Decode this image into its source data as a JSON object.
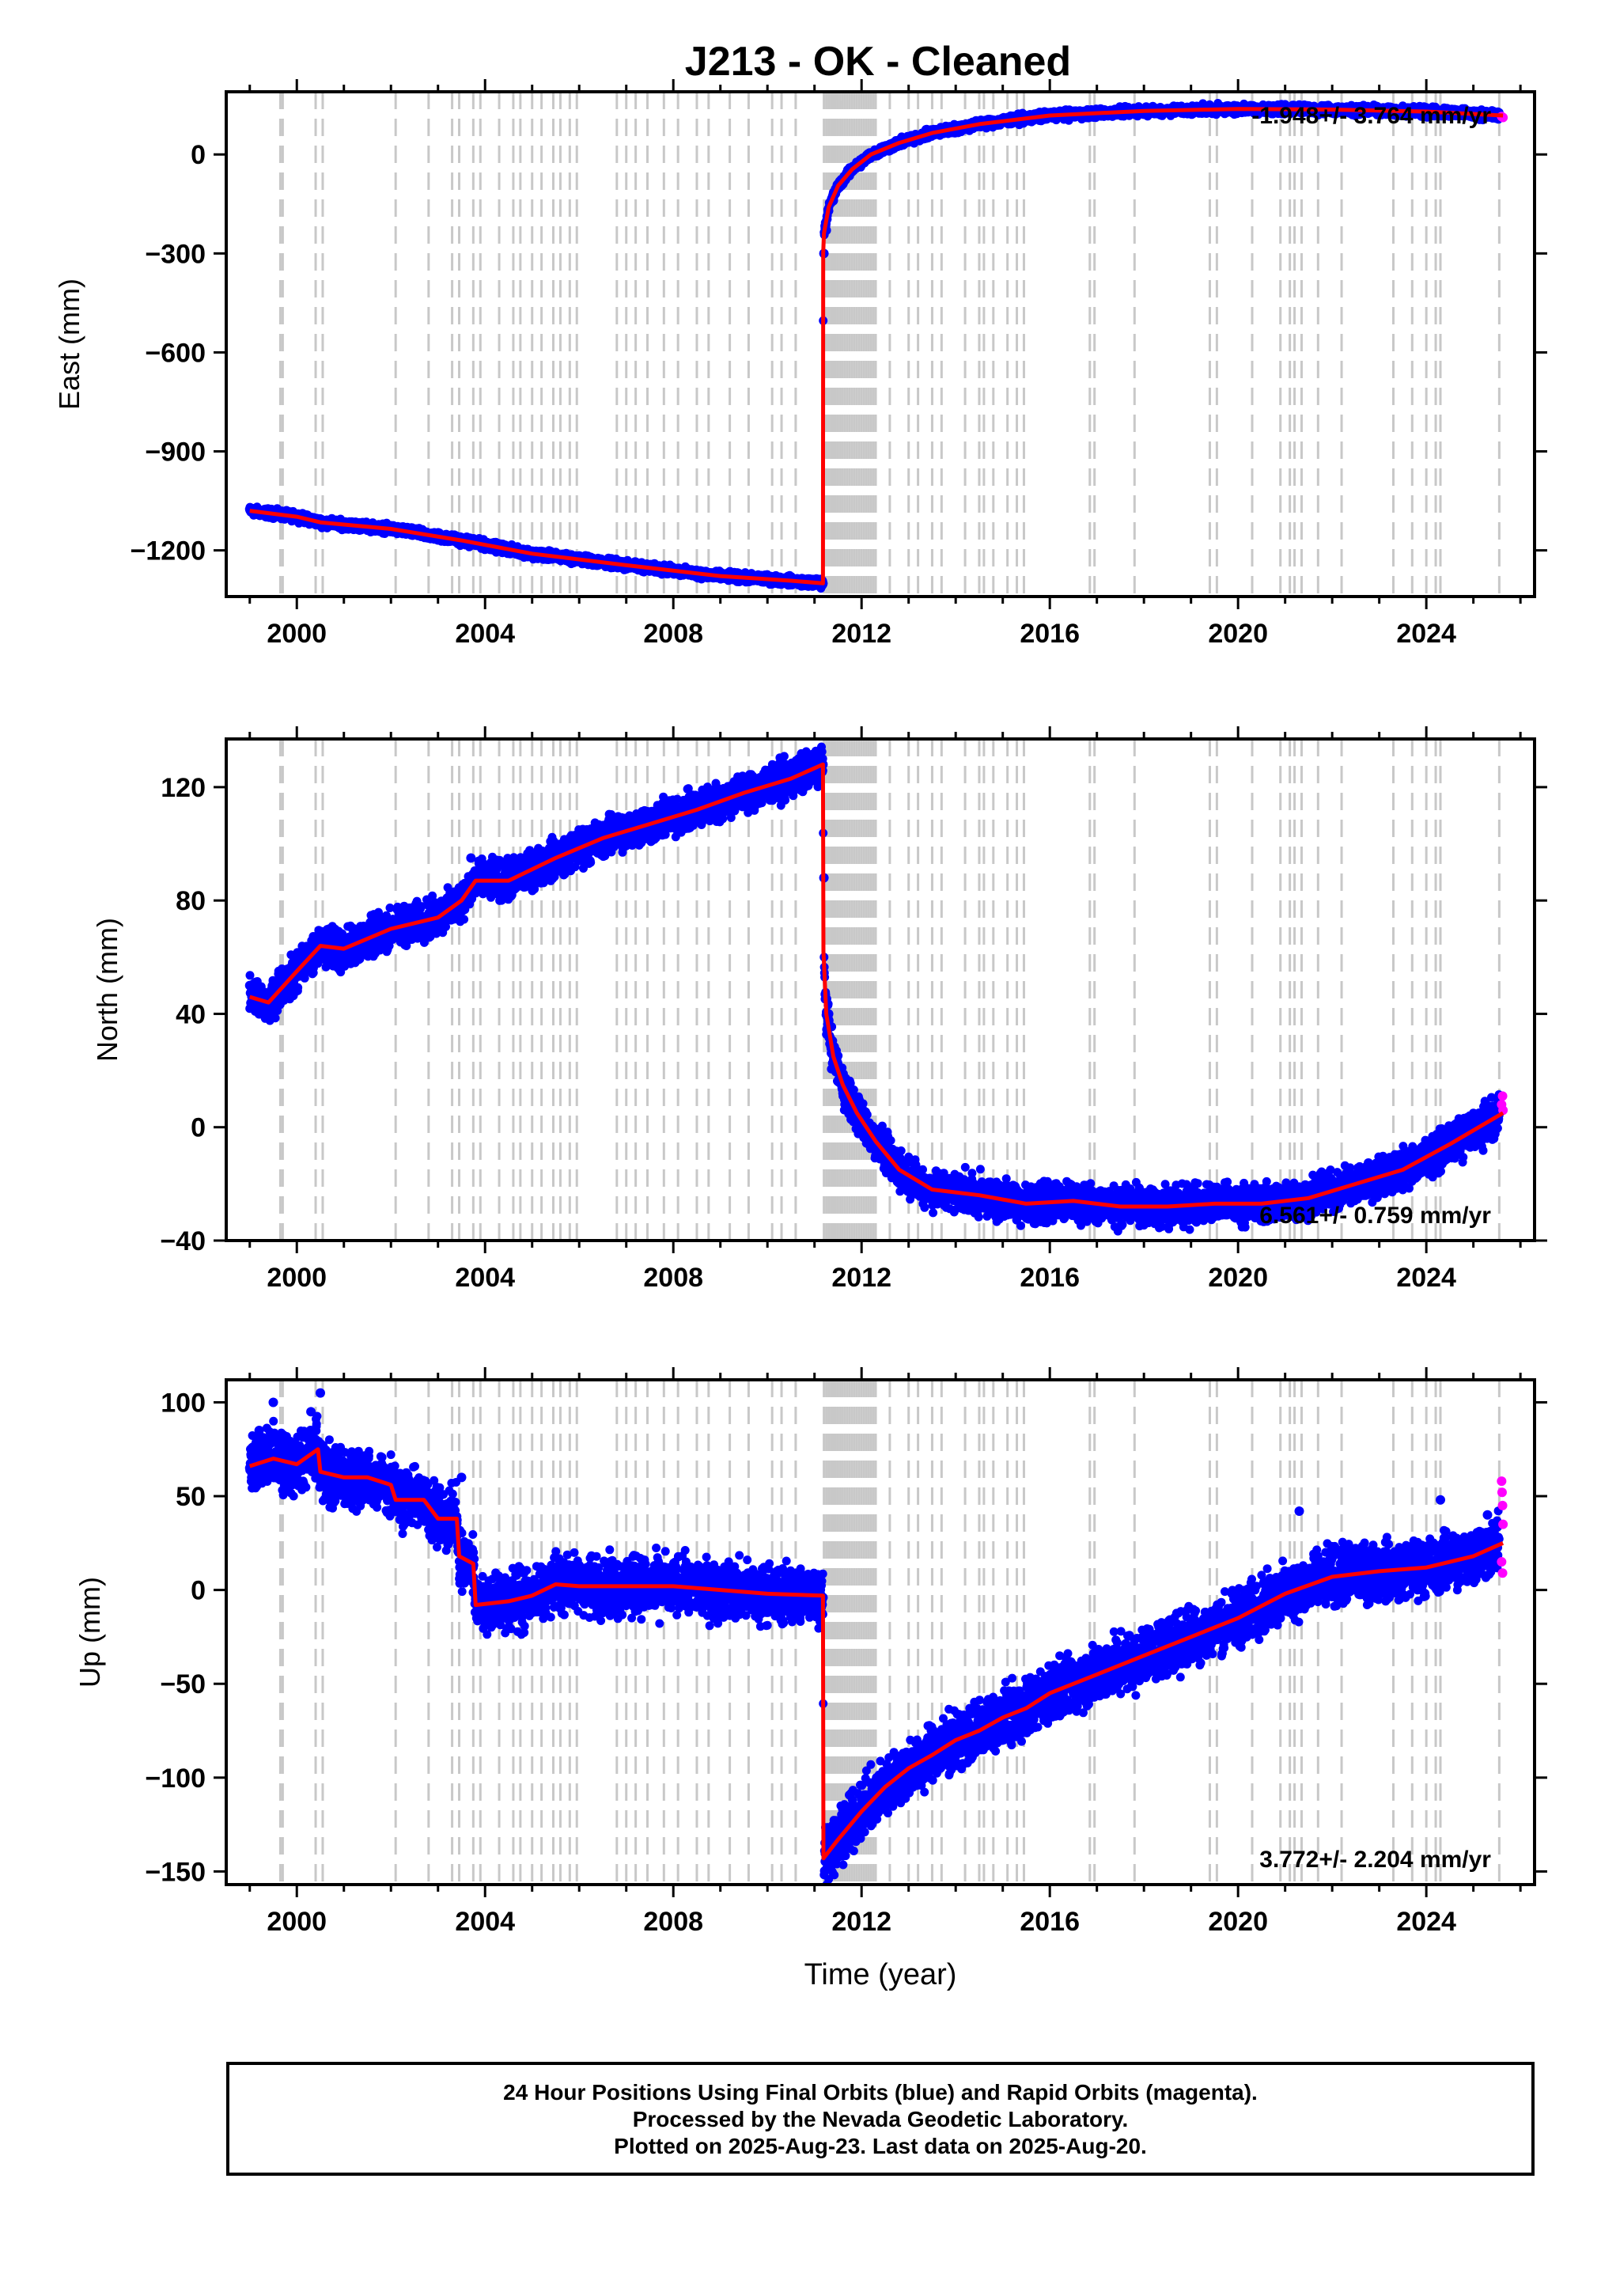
{
  "title": "J213  - OK - Cleaned",
  "colors": {
    "final_points": "#0000ff",
    "rapid_points": "#ff00ff",
    "model_line": "#ff0000",
    "event_lines": "#c8c8c8",
    "frame": "#000000"
  },
  "footer": {
    "line1": "24 Hour Positions Using Final Orbits (blue) and Rapid Orbits (magenta).",
    "line2": "Processed by the Nevada Geodetic Laboratory.",
    "line3": "Plotted on 2025-Aug-23. Last data on 2025-Aug-20."
  },
  "chart_data": [
    {
      "type": "scatter",
      "component": "east",
      "ylabel": "East (mm)",
      "xlabel": "",
      "rate_label": "-1.948+/- 3.764 mm/yr",
      "xlim": [
        1998.5,
        2026.3
      ],
      "ylim": [
        -1340,
        190
      ],
      "xticks": [
        2000,
        2004,
        2008,
        2012,
        2016,
        2020,
        2024
      ],
      "yticks": [
        -1200,
        -900,
        -600,
        -300,
        0
      ],
      "ytick_labels": [
        "−1200",
        "−900",
        "−600",
        "−300",
        "0"
      ],
      "model_x": [
        1999.0,
        2000.0,
        2000.5,
        2002.0,
        2003.5,
        2005.0,
        2007.0,
        2009.0,
        2010.5,
        2011.18,
        2011.185,
        2011.2,
        2011.3,
        2011.5,
        2011.8,
        2012.2,
        2012.8,
        2013.5,
        2014.5,
        2016.0,
        2018.0,
        2020.0,
        2022.0,
        2024.0,
        2025.63
      ],
      "model_y": [
        -1080,
        -1098,
        -1115,
        -1135,
        -1170,
        -1210,
        -1245,
        -1278,
        -1292,
        -1300,
        -300,
        -240,
        -160,
        -95,
        -45,
        0,
        35,
        65,
        92,
        118,
        132,
        138,
        136,
        130,
        118
      ],
      "final_points": [
        [
          1999.0,
          -1075
        ],
        [
          1999.5,
          -1082
        ],
        [
          2000.0,
          -1095
        ],
        [
          2000.5,
          -1105
        ],
        [
          2001.0,
          -1115
        ],
        [
          2001.5,
          -1125
        ],
        [
          2002.0,
          -1138
        ],
        [
          2002.5,
          -1145
        ],
        [
          2003.0,
          -1158
        ],
        [
          2003.5,
          -1170
        ],
        [
          2004.0,
          -1182
        ],
        [
          2004.5,
          -1195
        ],
        [
          2005.0,
          -1208
        ],
        [
          2005.5,
          -1220
        ],
        [
          2006.0,
          -1230
        ],
        [
          2006.5,
          -1240
        ],
        [
          2007.0,
          -1248
        ],
        [
          2007.5,
          -1258
        ],
        [
          2008.0,
          -1266
        ],
        [
          2008.5,
          -1272
        ],
        [
          2009.0,
          -1278
        ],
        [
          2009.5,
          -1284
        ],
        [
          2010.0,
          -1288
        ],
        [
          2010.5,
          -1293
        ],
        [
          2011.0,
          -1298
        ],
        [
          2011.18,
          -1300
        ],
        [
          2011.2,
          -300
        ],
        [
          2011.25,
          -230
        ],
        [
          2011.4,
          -140
        ],
        [
          2011.6,
          -90
        ],
        [
          2011.9,
          -40
        ],
        [
          2012.3,
          5
        ],
        [
          2012.8,
          35
        ],
        [
          2013.3,
          58
        ],
        [
          2014.0,
          80
        ],
        [
          2014.8,
          98
        ],
        [
          2015.5,
          110
        ],
        [
          2016.5,
          122
        ],
        [
          2017.5,
          130
        ],
        [
          2018.5,
          134
        ],
        [
          2019.5,
          137
        ],
        [
          2020.5,
          138
        ],
        [
          2021.3,
          150
        ],
        [
          2022.0,
          137
        ],
        [
          2023.0,
          134
        ],
        [
          2024.0,
          130
        ],
        [
          2025.0,
          124
        ],
        [
          2025.55,
          118
        ]
      ],
      "rapid_points": [
        [
          2025.6,
          115
        ],
        [
          2025.63,
          112
        ]
      ]
    },
    {
      "type": "scatter",
      "component": "north",
      "ylabel": "North (mm)",
      "xlabel": "",
      "rate_label": "6.561+/- 0.759 mm/yr",
      "xlim": [
        1998.5,
        2026.3
      ],
      "ylim": [
        -40,
        137
      ],
      "xticks": [
        2000,
        2004,
        2008,
        2012,
        2016,
        2020,
        2024
      ],
      "yticks": [
        -40,
        0,
        40,
        80,
        120
      ],
      "ytick_labels": [
        "−40",
        "0",
        "40",
        "80",
        "120"
      ],
      "model_x": [
        1999.0,
        1999.4,
        2000.0,
        2000.5,
        2001.0,
        2002.0,
        2003.0,
        2003.5,
        2003.8,
        2004.5,
        2005.5,
        2006.5,
        2007.5,
        2008.5,
        2009.5,
        2010.5,
        2011.18,
        2011.19,
        2011.25,
        2011.4,
        2011.6,
        2011.9,
        2012.3,
        2012.8,
        2013.5,
        2014.5,
        2015.5,
        2016.5,
        2017.5,
        2018.5,
        2019.5,
        2020.5,
        2021.5,
        2022.5,
        2023.5,
        2024.5,
        2025.63
      ],
      "model_y": [
        46,
        44,
        55,
        64,
        63,
        70,
        74,
        80,
        87,
        87,
        95,
        102,
        107,
        112,
        118,
        123,
        128,
        62,
        40,
        25,
        15,
        5,
        -5,
        -15,
        -22,
        -24,
        -27,
        -26,
        -28,
        -28,
        -27,
        -27,
        -25,
        -20,
        -15,
        -6,
        5
      ],
      "final_points": [
        [
          1999.0,
          50
        ],
        [
          1999.2,
          40
        ],
        [
          1999.5,
          47
        ],
        [
          2000.0,
          55
        ],
        [
          2000.5,
          63
        ],
        [
          2001.0,
          65
        ],
        [
          2001.5,
          66
        ],
        [
          2002.0,
          70
        ],
        [
          2002.5,
          71
        ],
        [
          2003.0,
          75
        ],
        [
          2003.5,
          82
        ],
        [
          2003.7,
          95
        ],
        [
          2004.0,
          88
        ],
        [
          2004.5,
          88
        ],
        [
          2005.0,
          93
        ],
        [
          2005.5,
          96
        ],
        [
          2006.0,
          100
        ],
        [
          2006.5,
          103
        ],
        [
          2007.0,
          106
        ],
        [
          2007.5,
          108
        ],
        [
          2008.0,
          110
        ],
        [
          2008.5,
          113
        ],
        [
          2009.0,
          116
        ],
        [
          2009.5,
          119
        ],
        [
          2010.0,
          122
        ],
        [
          2010.5,
          127
        ],
        [
          2011.0,
          131
        ],
        [
          2011.18,
          128
        ],
        [
          2011.2,
          88
        ],
        [
          2011.3,
          40
        ],
        [
          2011.5,
          22
        ],
        [
          2011.8,
          10
        ],
        [
          2012.2,
          -2
        ],
        [
          2012.8,
          -12
        ],
        [
          2013.5,
          -20
        ],
        [
          2014.3,
          -25
        ],
        [
          2015.0,
          -28
        ],
        [
          2015.5,
          -26
        ],
        [
          2016.0,
          -25
        ],
        [
          2016.7,
          -26
        ],
        [
          2017.3,
          -27
        ],
        [
          2018.0,
          -28
        ],
        [
          2018.7,
          -27
        ],
        [
          2019.3,
          -27
        ],
        [
          2019.9,
          -26
        ],
        [
          2020.5,
          -28
        ],
        [
          2021.0,
          -26
        ],
        [
          2021.5,
          -24
        ],
        [
          2022.2,
          -18
        ],
        [
          2022.8,
          -16
        ],
        [
          2023.4,
          -14
        ],
        [
          2024.0,
          -12
        ],
        [
          2024.6,
          -4
        ],
        [
          2025.1,
          -1
        ],
        [
          2025.5,
          3
        ]
      ],
      "rapid_points": [
        [
          2025.6,
          8
        ],
        [
          2025.62,
          11
        ],
        [
          2025.63,
          6
        ]
      ]
    },
    {
      "type": "scatter",
      "component": "up",
      "ylabel": "Up (mm)",
      "xlabel": "Time (year)",
      "rate_label": "3.772+/- 2.204 mm/yr",
      "xlim": [
        1998.5,
        2026.3
      ],
      "ylim": [
        -157,
        112
      ],
      "xticks": [
        2000,
        2004,
        2008,
        2012,
        2016,
        2020,
        2024
      ],
      "yticks": [
        -150,
        -100,
        -50,
        0,
        50,
        100
      ],
      "ytick_labels": [
        "−150",
        "−100",
        "−50",
        "0",
        "50",
        "100"
      ],
      "model_x": [
        1999.0,
        1999.5,
        2000.0,
        2000.45,
        2000.5,
        2001.0,
        2001.5,
        2002.0,
        2002.1,
        2002.7,
        2003.0,
        2003.4,
        2003.45,
        2003.75,
        2003.8,
        2004.5,
        2005.0,
        2005.5,
        2006.0,
        2007.0,
        2008.0,
        2009.0,
        2010.0,
        2011.18,
        2011.19,
        2011.5,
        2012.0,
        2012.5,
        2013.0,
        2013.5,
        2014.0,
        2014.5,
        2015.0,
        2015.5,
        2016.0,
        2017.0,
        2018.0,
        2019.0,
        2020.0,
        2021.0,
        2022.0,
        2023.0,
        2024.0,
        2025.0,
        2025.63
      ],
      "model_y": [
        66,
        70,
        67,
        75,
        63,
        60,
        60,
        56,
        48,
        48,
        38,
        38,
        18,
        14,
        -8,
        -6,
        -3,
        3,
        2,
        2,
        2,
        0,
        -2,
        -3,
        -143,
        -133,
        -118,
        -105,
        -95,
        -88,
        -80,
        -75,
        -68,
        -63,
        -55,
        -45,
        -35,
        -25,
        -15,
        -2,
        7,
        10,
        12,
        18,
        25
      ],
      "final_points": [
        [
          1999.0,
          65
        ],
        [
          1999.2,
          85
        ],
        [
          1999.5,
          100
        ],
        [
          1999.8,
          70
        ],
        [
          2000.0,
          75
        ],
        [
          2000.3,
          95
        ],
        [
          2000.5,
          105
        ],
        [
          2000.8,
          60
        ],
        [
          2001.2,
          62
        ],
        [
          2001.6,
          58
        ],
        [
          2002.0,
          55
        ],
        [
          2002.4,
          48
        ],
        [
          2002.8,
          45
        ],
        [
          2003.2,
          40
        ],
        [
          2003.5,
          60
        ],
        [
          2003.8,
          -5
        ],
        [
          2004.0,
          -12
        ],
        [
          2004.5,
          -3
        ],
        [
          2005.0,
          0
        ],
        [
          2005.5,
          10
        ],
        [
          2006.0,
          5
        ],
        [
          2006.5,
          3
        ],
        [
          2007.0,
          0
        ],
        [
          2007.5,
          4
        ],
        [
          2008.0,
          2
        ],
        [
          2008.5,
          0
        ],
        [
          2009.0,
          1
        ],
        [
          2009.5,
          -2
        ],
        [
          2010.0,
          0
        ],
        [
          2010.5,
          -3
        ],
        [
          2011.0,
          -5
        ],
        [
          2011.18,
          -4
        ],
        [
          2011.3,
          -145
        ],
        [
          2011.5,
          -135
        ],
        [
          2012.0,
          -120
        ],
        [
          2012.5,
          -108
        ],
        [
          2013.0,
          -95
        ],
        [
          2013.5,
          -85
        ],
        [
          2014.0,
          -80
        ],
        [
          2014.5,
          -75
        ],
        [
          2015.0,
          -68
        ],
        [
          2015.5,
          -60
        ],
        [
          2016.0,
          -52
        ],
        [
          2016.5,
          -48
        ],
        [
          2017.0,
          -42
        ],
        [
          2017.5,
          -38
        ],
        [
          2018.0,
          -32
        ],
        [
          2018.5,
          -28
        ],
        [
          2019.0,
          -22
        ],
        [
          2019.5,
          -18
        ],
        [
          2020.0,
          -12
        ],
        [
          2020.5,
          -5
        ],
        [
          2021.0,
          5
        ],
        [
          2021.3,
          42
        ],
        [
          2021.5,
          2
        ],
        [
          2022.0,
          8
        ],
        [
          2022.5,
          6
        ],
        [
          2023.0,
          12
        ],
        [
          2023.5,
          8
        ],
        [
          2024.0,
          12
        ],
        [
          2024.3,
          48
        ],
        [
          2024.6,
          15
        ],
        [
          2025.0,
          20
        ],
        [
          2025.3,
          40
        ],
        [
          2025.5,
          24
        ]
      ],
      "rapid_points": [
        [
          2025.6,
          58
        ],
        [
          2025.61,
          52
        ],
        [
          2025.62,
          45
        ],
        [
          2025.63,
          35
        ],
        [
          2025.6,
          15
        ],
        [
          2025.62,
          9
        ]
      ]
    }
  ],
  "event_lines": [
    1999.65,
    1999.7,
    2000.4,
    2000.55,
    2002.1,
    2002.8,
    2003.3,
    2003.45,
    2003.75,
    2003.9,
    2004.3,
    2004.6,
    2004.75,
    2005.0,
    2005.2,
    2005.45,
    2005.6,
    2005.8,
    2005.95,
    2006.8,
    2007.0,
    2007.2,
    2007.45,
    2007.8,
    2008.1,
    2008.5,
    2008.75,
    2009.2,
    2009.6,
    2010.1,
    2010.3,
    2010.6,
    2011.2,
    2011.25,
    2011.3,
    2011.35,
    2011.4,
    2011.45,
    2011.5,
    2011.55,
    2011.6,
    2011.65,
    2011.7,
    2011.75,
    2011.8,
    2011.85,
    2011.9,
    2011.95,
    2012.0,
    2012.05,
    2012.1,
    2012.15,
    2012.2,
    2012.25,
    2012.3,
    2012.6,
    2013.0,
    2013.2,
    2013.5,
    2013.7,
    2014.2,
    2014.5,
    2014.6,
    2014.8,
    2015.1,
    2015.3,
    2015.45,
    2016.85,
    2016.95,
    2017.8,
    2019.4,
    2019.55,
    2020.3,
    2020.9,
    2021.1,
    2021.2,
    2021.35,
    2021.7,
    2022.2,
    2023.3,
    2023.7,
    2024.0,
    2024.2,
    2024.3,
    2025.55
  ]
}
